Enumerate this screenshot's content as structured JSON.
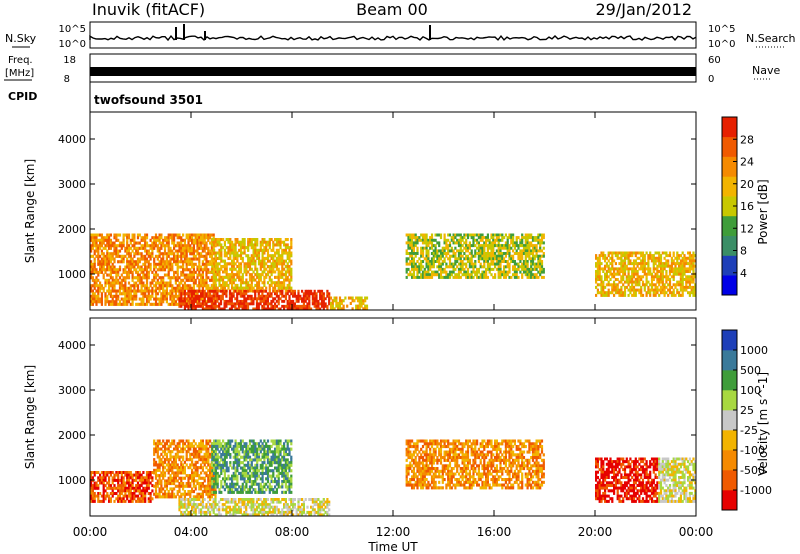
{
  "header": {
    "title": "Inuvik (fitACF)",
    "beam": "Beam 00",
    "date": "29/Jan/2012"
  },
  "side_labels": {
    "nsky": "N.Sky",
    "freq_line1": "Freq.",
    "freq_line2": "[MHz]",
    "cpid": "CPID",
    "nsearch": "N.Search",
    "nave": "Nave",
    "cpid_value": "twofsound 3501"
  },
  "strips": {
    "nsky_ticks": [
      "10^5",
      "10^0"
    ],
    "nsearch_ticks": [
      "10^5",
      "10^0"
    ],
    "freq_ticks": [
      "18",
      "8"
    ],
    "nave_ticks": [
      "60",
      "0"
    ]
  },
  "colors": {
    "power": [
      "#0000e6",
      "#1e3fb8",
      "#3a8e66",
      "#3f9d3a",
      "#c8c800",
      "#f2b400",
      "#f58a00",
      "#f05a00",
      "#e62000"
    ],
    "velocity": [
      "#e60000",
      "#f05a00",
      "#f58a00",
      "#f2b400",
      "#c8c8c8",
      "#a8d840",
      "#3f9d3a",
      "#3a7a9a",
      "#1e3fb8"
    ]
  },
  "chart_data": [
    {
      "type": "heatmap",
      "quantity": "power",
      "ylabel": "Slant Range [km]",
      "ylim": [
        200,
        4600
      ],
      "xlim_hours": [
        0,
        24
      ],
      "y_ticks": [
        "1000",
        "2000",
        "3000",
        "4000"
      ],
      "colorbar_label": "Power [dB]",
      "colorbar_ticks": [
        "4",
        "8",
        "12",
        "16",
        "20",
        "24",
        "28"
      ],
      "echo_regions": [
        {
          "t0": 0.0,
          "t1": 5.0,
          "r0": 300,
          "r1": 1900,
          "level": 6
        },
        {
          "t0": 4.8,
          "t1": 8.0,
          "r0": 600,
          "r1": 1800,
          "level": 5
        },
        {
          "t0": 3.5,
          "t1": 9.5,
          "r0": 200,
          "r1": 650,
          "level": 8
        },
        {
          "t0": 9.5,
          "t1": 11.0,
          "r0": 200,
          "r1": 500,
          "level": 5
        },
        {
          "t0": 12.5,
          "t1": 18.0,
          "r0": 900,
          "r1": 1900,
          "level": 4
        },
        {
          "t0": 20.0,
          "t1": 24.0,
          "r0": 500,
          "r1": 1500,
          "level": 5
        }
      ]
    },
    {
      "type": "heatmap",
      "quantity": "velocity",
      "xlabel": "Time UT",
      "ylabel": "Slant Range [km]",
      "ylim": [
        200,
        4600
      ],
      "xlim_hours": [
        0,
        24
      ],
      "x_ticks": [
        "00:00",
        "04:00",
        "08:00",
        "12:00",
        "16:00",
        "20:00",
        "00:00"
      ],
      "y_ticks": [
        "1000",
        "2000",
        "3000",
        "4000"
      ],
      "colorbar_label": "Velocity [m s^-1]",
      "colorbar_ticks": [
        "-1000",
        "-500",
        "-100",
        "-25",
        "25",
        "100",
        "500",
        "1000"
      ],
      "echo_regions": [
        {
          "t0": 0.0,
          "t1": 2.5,
          "r0": 500,
          "r1": 1200,
          "level": 1
        },
        {
          "t0": 2.5,
          "t1": 5.0,
          "r0": 600,
          "r1": 1900,
          "level": 2
        },
        {
          "t0": 4.8,
          "t1": 8.0,
          "r0": 700,
          "r1": 1900,
          "level": 6
        },
        {
          "t0": 3.5,
          "t1": 9.5,
          "r0": 200,
          "r1": 600,
          "level": 4
        },
        {
          "t0": 12.5,
          "t1": 18.0,
          "r0": 800,
          "r1": 1900,
          "level": 2
        },
        {
          "t0": 20.0,
          "t1": 22.5,
          "r0": 500,
          "r1": 1500,
          "level": 0
        },
        {
          "t0": 22.5,
          "t1": 24.0,
          "r0": 500,
          "r1": 1500,
          "level": 4
        }
      ]
    }
  ]
}
